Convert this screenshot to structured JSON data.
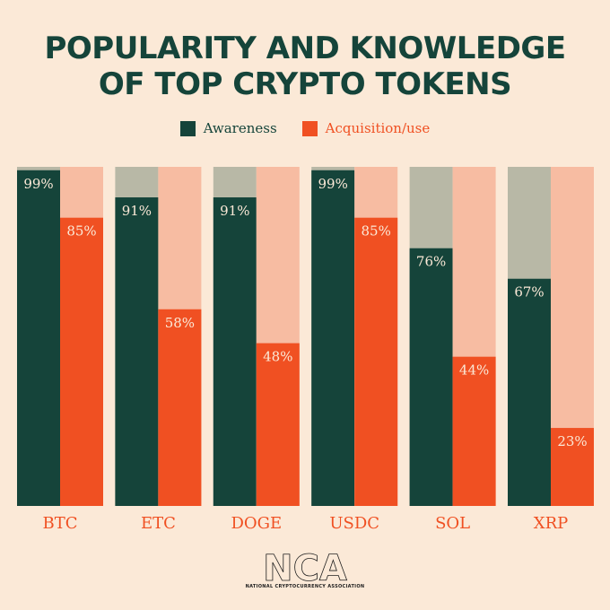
{
  "title_lines": [
    "POPULARITY AND KNOWLEDGE",
    "OF TOP CRYPTO TOKENS"
  ],
  "legend": {
    "awareness": "Awareness",
    "acquisition": "Acquisition/use"
  },
  "colors": {
    "awareness": "#15443a",
    "awareness_track": "#b8b8a6",
    "acquisition": "#f05022",
    "acquisition_track": "#f7bca2",
    "axis": "#f05022",
    "text_light": "#fbe9d7"
  },
  "chart_data": {
    "type": "bar",
    "categories": [
      "BTC",
      "ETC",
      "DOGE",
      "USDC",
      "SOL",
      "XRP"
    ],
    "series": [
      {
        "name": "Awareness",
        "values": [
          99,
          91,
          91,
          99,
          76,
          67
        ]
      },
      {
        "name": "Acquisition/use",
        "values": [
          85,
          58,
          48,
          85,
          44,
          23
        ]
      }
    ],
    "value_suffix": "%",
    "ylim": [
      0,
      100
    ],
    "grid": false,
    "legend_position": "top-center"
  },
  "logo": {
    "mark": "NCA",
    "subtitle": "NATIONAL CRYPTOCURRENCY ASSOCIATION"
  }
}
